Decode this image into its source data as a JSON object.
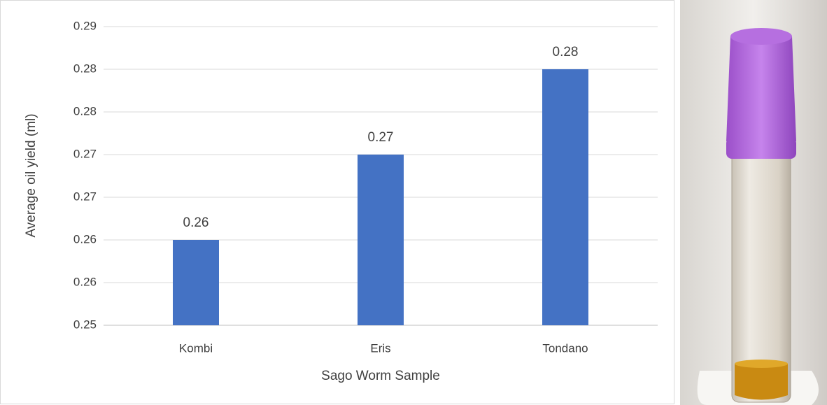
{
  "chart_data": {
    "type": "bar",
    "x_label": "Sago Worm Sample",
    "y_label": "Average oil yield (ml)",
    "categories": [
      "Kombi",
      "Eris",
      "Tondano"
    ],
    "values": [
      0.26,
      0.27,
      0.28
    ],
    "color": "#4472c4",
    "ylim": [
      0.25,
      0.285
    ],
    "yticks": [
      0.25,
      {
        "value": 0.255,
        "label": "0.26"
      },
      0.26,
      {
        "value": 0.265,
        "label": "0.27"
      },
      0.27,
      {
        "value": 0.275,
        "label": "0.28"
      },
      0.28,
      {
        "value": 0.285,
        "label": "0.29"
      }
    ],
    "grid": true,
    "data_labels": true
  }
}
